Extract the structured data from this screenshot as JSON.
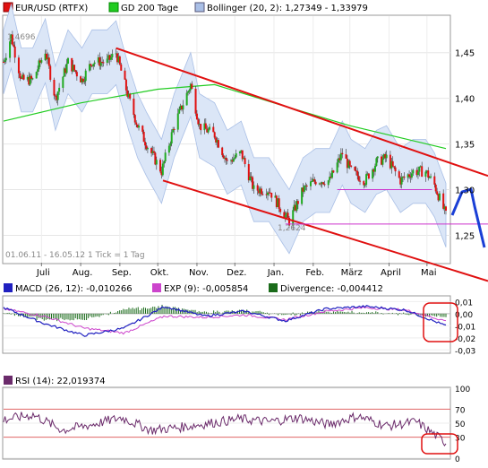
{
  "chart_data": [
    {
      "type": "candlestick",
      "legend": [
        {
          "label": "EUR/USD (RTFX)",
          "color": "#e01010"
        },
        {
          "label": "GD 200 Tage",
          "color": "#22cc22"
        },
        {
          "label": "Bollinger (20, 2): 1,27349 - 1,33979",
          "color": "#a9bfe6"
        }
      ],
      "x_ticks": [
        "Juli",
        "Aug.",
        "Sep.",
        "Okt.",
        "Nov.",
        "Dez.",
        "Jan.",
        "Feb.",
        "März",
        "April",
        "Mai"
      ],
      "y_ticks": [
        "1,45",
        "1,40",
        "1,35",
        "1,30",
        "1,25"
      ],
      "ylim": [
        1.22,
        1.49
      ],
      "date_range_label": "01.06.11 - 16.05.12   1 Tick = 1 Tag",
      "annotations": {
        "high": "1,4696",
        "low": "1,2624"
      },
      "price_path": [
        [
          "2011-06-01",
          1.44
        ],
        [
          "2011-06-07",
          1.468
        ],
        [
          "2011-06-15",
          1.42
        ],
        [
          "2011-06-24",
          1.42
        ],
        [
          "2011-07-04",
          1.452
        ],
        [
          "2011-07-12",
          1.4
        ],
        [
          "2011-07-22",
          1.44
        ],
        [
          "2011-08-02",
          1.42
        ],
        [
          "2011-08-10",
          1.44
        ],
        [
          "2011-08-22",
          1.44
        ],
        [
          "2011-08-29",
          1.45
        ],
        [
          "2011-09-08",
          1.4
        ],
        [
          "2011-09-15",
          1.37
        ],
        [
          "2011-09-22",
          1.35
        ],
        [
          "2011-10-04",
          1.32
        ],
        [
          "2011-10-14",
          1.37
        ],
        [
          "2011-10-27",
          1.415
        ],
        [
          "2011-11-03",
          1.37
        ],
        [
          "2011-11-15",
          1.36
        ],
        [
          "2011-11-25",
          1.33
        ],
        [
          "2011-12-06",
          1.34
        ],
        [
          "2011-12-16",
          1.3
        ],
        [
          "2011-12-28",
          1.3
        ],
        [
          "2012-01-06",
          1.28
        ],
        [
          "2012-01-13",
          1.265
        ],
        [
          "2012-01-24",
          1.3
        ],
        [
          "2012-02-03",
          1.31
        ],
        [
          "2012-02-14",
          1.31
        ],
        [
          "2012-02-24",
          1.34
        ],
        [
          "2012-03-02",
          1.32
        ],
        [
          "2012-03-13",
          1.31
        ],
        [
          "2012-03-22",
          1.33
        ],
        [
          "2012-03-30",
          1.335
        ],
        [
          "2012-04-10",
          1.31
        ],
        [
          "2012-04-20",
          1.32
        ],
        [
          "2012-04-30",
          1.32
        ],
        [
          "2012-05-07",
          1.305
        ],
        [
          "2012-05-16",
          1.272
        ]
      ],
      "gd200_path": [
        [
          "2011-06-01",
          1.375
        ],
        [
          "2011-08-01",
          1.395
        ],
        [
          "2011-10-01",
          1.41
        ],
        [
          "2011-11-15",
          1.415
        ],
        [
          "2012-01-01",
          1.395
        ],
        [
          "2012-03-01",
          1.37
        ],
        [
          "2012-05-16",
          1.345
        ]
      ],
      "trend_channel": {
        "upper": [
          [
            "2011-08-29",
            1.455
          ],
          [
            "2012-05-31",
            1.315
          ]
        ],
        "lower": [
          [
            "2011-10-01",
            1.31
          ],
          [
            "2012-05-31",
            1.2
          ]
        ],
        "support_lines": [
          "1,2624",
          "1,30"
        ],
        "projection": "blue arrow pointing down"
      }
    },
    {
      "type": "line",
      "title": "MACD (26, 12): -0,010266",
      "legend": [
        {
          "label": "MACD (26, 12): -0,010266",
          "color": "#2020c0"
        },
        {
          "label": "EXP (9): -0,005854",
          "color": "#cc44cc"
        },
        {
          "label": "Divergence: -0,004412",
          "color": "#1a6b1a"
        }
      ],
      "y_ticks": [
        "0,01",
        "0,00",
        "-0,01",
        "-0,02",
        "-0,03"
      ],
      "ylim": [
        -0.032,
        0.014
      ],
      "series": [
        {
          "name": "MACD",
          "values": [
            0.005,
            -0.008,
            -0.018,
            -0.012,
            0.006,
            -0.002,
            0.002,
            -0.006,
            0.004,
            0.006,
            0.003,
            -0.01
          ]
        },
        {
          "name": "EXP",
          "values": [
            0.004,
            -0.002,
            -0.012,
            -0.016,
            -0.002,
            -0.003,
            -0.001,
            -0.005,
            0.002,
            0.005,
            0.003,
            -0.006
          ]
        }
      ]
    },
    {
      "type": "line",
      "title": "RSI (14): 22,019374",
      "legend": [
        {
          "label": "RSI (14): 22,019374",
          "color": "#6b2b6b"
        }
      ],
      "y_ticks": [
        "100",
        "70",
        "50",
        "30",
        "0"
      ],
      "ylim": [
        0,
        100
      ],
      "reference_lines": {
        "high": "70",
        "low": "30"
      },
      "series": [
        {
          "name": "RSI",
          "values": [
            55,
            62,
            40,
            48,
            58,
            40,
            44,
            50,
            56,
            52,
            58,
            48,
            60,
            46,
            52,
            22
          ]
        }
      ]
    }
  ]
}
